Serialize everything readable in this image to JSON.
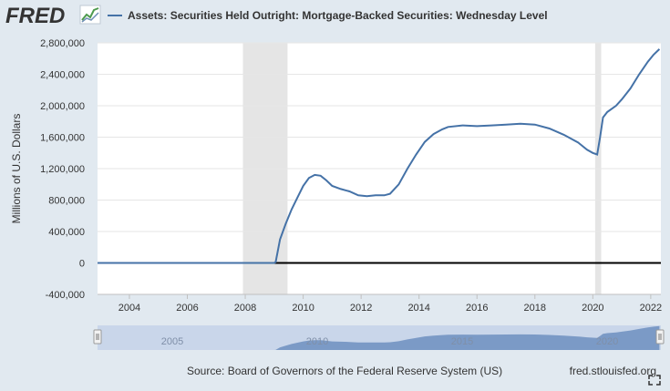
{
  "header": {
    "logo_text": "FRED",
    "legend_label": "Assets: Securities Held Outright: Mortgage-Backed Securities: Wednesday Level"
  },
  "colors": {
    "background": "#e1e9f0",
    "plot_background": "#ffffff",
    "series": "#4572a7",
    "recession": "#e5e5e5",
    "grid": "#e6e6e6",
    "axis_text": "#333333",
    "zero_line": "#000000",
    "navigator_fill": "#6d8fbf",
    "navigator_window": "#c9d6ea"
  },
  "footer": {
    "source": "Source: Board of Governors of the Federal Reserve System (US)",
    "site": "fred.stlouisfed.org"
  },
  "navigator": {
    "labels": [
      "2005",
      "2010",
      "2015",
      "2020"
    ],
    "left_handle_icon": "grip-handle-icon",
    "right_handle_icon": "grip-handle-icon"
  },
  "chart_data": {
    "type": "line",
    "title": "Assets: Securities Held Outright: Mortgage-Backed Securities: Wednesday Level",
    "ylabel": "Millions of U.S. Dollars",
    "xlabel": "",
    "xlim": [
      2002.9,
      2022.35
    ],
    "ylim": [
      -400000,
      2800000
    ],
    "yticks": [
      -400000,
      0,
      400000,
      800000,
      1200000,
      1600000,
      2000000,
      2400000,
      2800000
    ],
    "ytick_labels": [
      "-400,000",
      "0",
      "400,000",
      "800,000",
      "1,200,000",
      "1,600,000",
      "2,000,000",
      "2,400,000",
      "2,800,000"
    ],
    "xticks": [
      2004,
      2006,
      2008,
      2010,
      2012,
      2014,
      2016,
      2018,
      2020,
      2022
    ],
    "xtick_labels": [
      "2004",
      "2006",
      "2008",
      "2010",
      "2012",
      "2014",
      "2016",
      "2018",
      "2020",
      "2022"
    ],
    "recessions": [
      [
        2007.92,
        2009.46
      ],
      [
        2020.08,
        2020.29
      ]
    ],
    "grid": "horizontal",
    "legend_position": "top",
    "series": [
      {
        "name": "Assets: Securities Held Outright: Mortgage-Backed Securities: Wednesday Level",
        "x": [
          2002.9,
          2008.0,
          2009.0,
          2009.05,
          2009.2,
          2009.4,
          2009.6,
          2009.8,
          2010.0,
          2010.2,
          2010.4,
          2010.6,
          2010.8,
          2011.0,
          2011.3,
          2011.6,
          2011.9,
          2012.2,
          2012.5,
          2012.8,
          2013.0,
          2013.3,
          2013.6,
          2013.9,
          2014.2,
          2014.5,
          2014.8,
          2015.0,
          2015.5,
          2016.0,
          2016.5,
          2017.0,
          2017.5,
          2018.0,
          2018.5,
          2019.0,
          2019.5,
          2019.8,
          2020.0,
          2020.15,
          2020.25,
          2020.35,
          2020.5,
          2020.8,
          2021.0,
          2021.3,
          2021.6,
          2021.9,
          2022.1,
          2022.3
        ],
        "y": [
          0,
          0,
          0,
          10000,
          300000,
          500000,
          680000,
          830000,
          980000,
          1080000,
          1120000,
          1110000,
          1050000,
          980000,
          940000,
          910000,
          860000,
          850000,
          860000,
          860000,
          880000,
          1000000,
          1200000,
          1380000,
          1540000,
          1640000,
          1700000,
          1730000,
          1750000,
          1740000,
          1750000,
          1760000,
          1770000,
          1760000,
          1710000,
          1630000,
          1530000,
          1440000,
          1400000,
          1380000,
          1600000,
          1850000,
          1920000,
          2000000,
          2080000,
          2220000,
          2400000,
          2560000,
          2650000,
          2720000
        ]
      }
    ]
  }
}
